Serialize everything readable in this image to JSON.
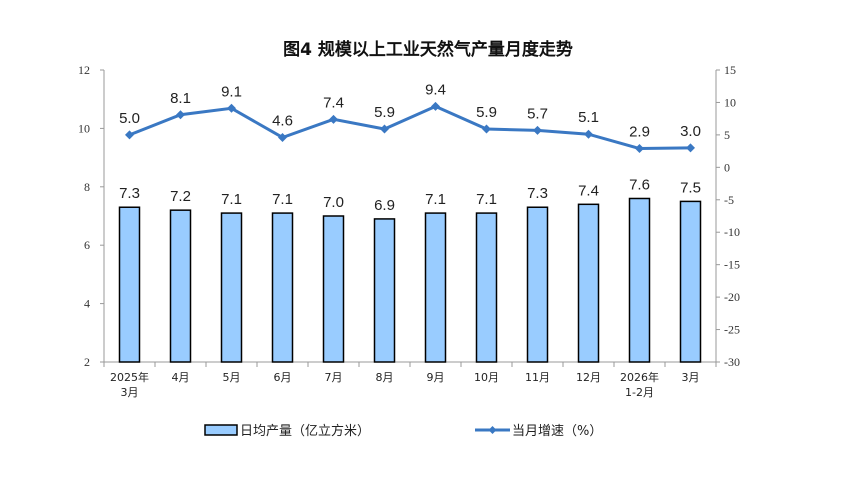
{
  "chart_data": {
    "type": "bar+line",
    "title": "图4  规模以上工业天然气产量月度走势",
    "categories": [
      [
        "2025年",
        "3月"
      ],
      [
        "4月"
      ],
      [
        "5月"
      ],
      [
        "6月"
      ],
      [
        "7月"
      ],
      [
        "8月"
      ],
      [
        "9月"
      ],
      [
        "10月"
      ],
      [
        "11月"
      ],
      [
        "12月"
      ],
      [
        "2026年",
        "1-2月"
      ],
      [
        "3月"
      ]
    ],
    "series": [
      {
        "name": "日均产量（亿立方米）",
        "type": "bar",
        "axis": "left",
        "color": "#99ccff",
        "values": [
          7.3,
          7.2,
          7.1,
          7.1,
          7.0,
          6.9,
          7.1,
          7.1,
          7.3,
          7.4,
          7.6,
          7.5
        ]
      },
      {
        "name": "当月增速（%）",
        "type": "line",
        "axis": "right",
        "color": "#3a78c3",
        "values": [
          5.0,
          8.1,
          9.1,
          4.6,
          7.4,
          5.9,
          9.4,
          5.9,
          5.7,
          5.1,
          2.9,
          3.0
        ]
      }
    ],
    "left_axis": {
      "ylim": [
        2,
        12
      ],
      "ticks": [
        2,
        4,
        6,
        8,
        10,
        12
      ]
    },
    "right_axis": {
      "ylim": [
        -30,
        15
      ],
      "ticks": [
        15,
        10,
        5,
        0,
        -5,
        -10,
        -15,
        -20,
        -25,
        -30
      ]
    },
    "grid": false,
    "legend": "bottom"
  }
}
